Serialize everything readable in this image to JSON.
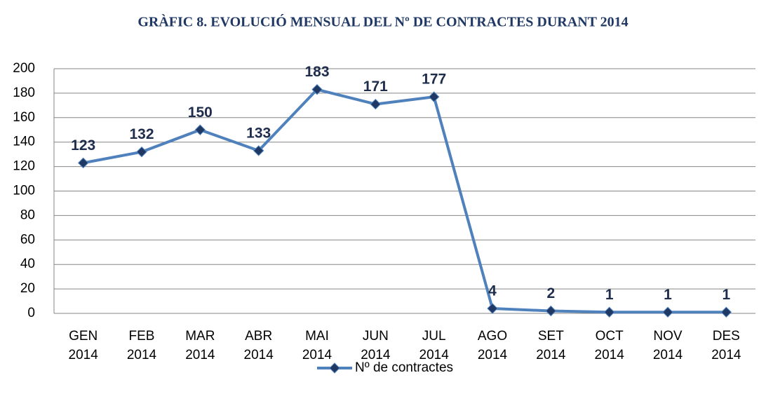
{
  "chart_data": {
    "type": "line",
    "title": "GRÀFIC 8. EVOLUCIÓ MENSUAL DEL Nº DE CONTRACTES DURANT 2014",
    "categories": [
      "GEN 2014",
      "FEB 2014",
      "MAR 2014",
      "ABR 2014",
      "MAI 2014",
      "JUN 2014",
      "JUL 2014",
      "AGO 2014",
      "SET 2014",
      "OCT 2014",
      "NOV 2014",
      "DES 2014"
    ],
    "series": [
      {
        "name": "Nº de contractes",
        "color": "#4f81bd",
        "marker_color": "#1f3864",
        "values": [
          123,
          132,
          150,
          133,
          183,
          171,
          177,
          4,
          2,
          1,
          1,
          1
        ]
      }
    ],
    "ylim": [
      0,
      200
    ],
    "yticks": [
      0,
      20,
      40,
      60,
      80,
      100,
      120,
      140,
      160,
      180,
      200
    ],
    "grid": true,
    "legend": "bottom"
  }
}
